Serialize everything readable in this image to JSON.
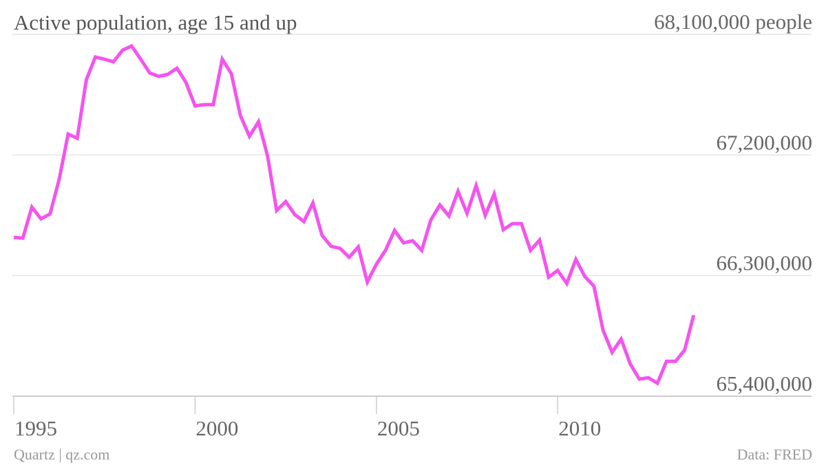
{
  "chart_data": {
    "type": "line",
    "title": "Active population, age 15 and up",
    "source": "Quartz | qz.com",
    "credit": "Data: FRED",
    "x": [
      1995,
      1995.25,
      1995.5,
      1995.75,
      1996,
      1996.25,
      1996.5,
      1996.75,
      1997,
      1997.25,
      1997.5,
      1997.75,
      1998,
      1998.25,
      1998.5,
      1998.75,
      1999,
      1999.25,
      1999.5,
      1999.75,
      2000,
      2000.25,
      2000.5,
      2000.75,
      2001,
      2001.25,
      2001.5,
      2001.75,
      2002,
      2002.25,
      2002.5,
      2002.75,
      2003,
      2003.25,
      2003.5,
      2003.75,
      2004,
      2004.25,
      2004.5,
      2004.75,
      2005,
      2005.25,
      2005.5,
      2005.75,
      2006,
      2006.25,
      2006.5,
      2006.75,
      2007,
      2007.25,
      2007.5,
      2007.75,
      2008,
      2008.25,
      2008.5,
      2008.75,
      2009,
      2009.25,
      2009.5,
      2009.75,
      2010,
      2010.25,
      2010.5,
      2010.75,
      2011,
      2011.25,
      2011.5,
      2011.75,
      2012,
      2012.25,
      2012.5,
      2012.75,
      2013,
      2013.25,
      2013.5,
      2013.75
    ],
    "series": [
      {
        "name": "Active population",
        "color": "#f454ef",
        "values": [
          66585000,
          66580000,
          66811000,
          66724000,
          66760000,
          67017000,
          67356000,
          67325000,
          67761000,
          67931000,
          67915000,
          67895000,
          67982000,
          68013000,
          67915000,
          67812000,
          67787000,
          67802000,
          67848000,
          67741000,
          67566000,
          67576000,
          67576000,
          67915000,
          67807000,
          67494000,
          67340000,
          67448000,
          67191000,
          66786000,
          66852000,
          66755000,
          66704000,
          66842000,
          66601000,
          66519000,
          66503000,
          66437000,
          66514000,
          66252000,
          66385000,
          66488000,
          66637000,
          66544000,
          66560000,
          66488000,
          66714000,
          66827000,
          66745000,
          66929000,
          66765000,
          66971000,
          66750000,
          66909000,
          66642000,
          66688000,
          66688000,
          66488000,
          66565000,
          66288000,
          66339000,
          66242000,
          66421000,
          66293000,
          66221000,
          65892000,
          65728000,
          65826000,
          65641000,
          65528000,
          65538000,
          65497000,
          65661000,
          65661000,
          65744000,
          66005000
        ]
      }
    ],
    "xlim": [
      1995,
      2017
    ],
    "xticks": [
      1995,
      2000,
      2005,
      2010
    ],
    "ylim": [
      65400000,
      68100000
    ],
    "yticks": [
      {
        "value": 65400000,
        "label": "65,400,000"
      },
      {
        "value": 66300000,
        "label": "66,300,000"
      },
      {
        "value": 67200000,
        "label": "67,200,000"
      },
      {
        "value": 68100000,
        "label": "68,100,000 people"
      }
    ],
    "grid": true
  }
}
